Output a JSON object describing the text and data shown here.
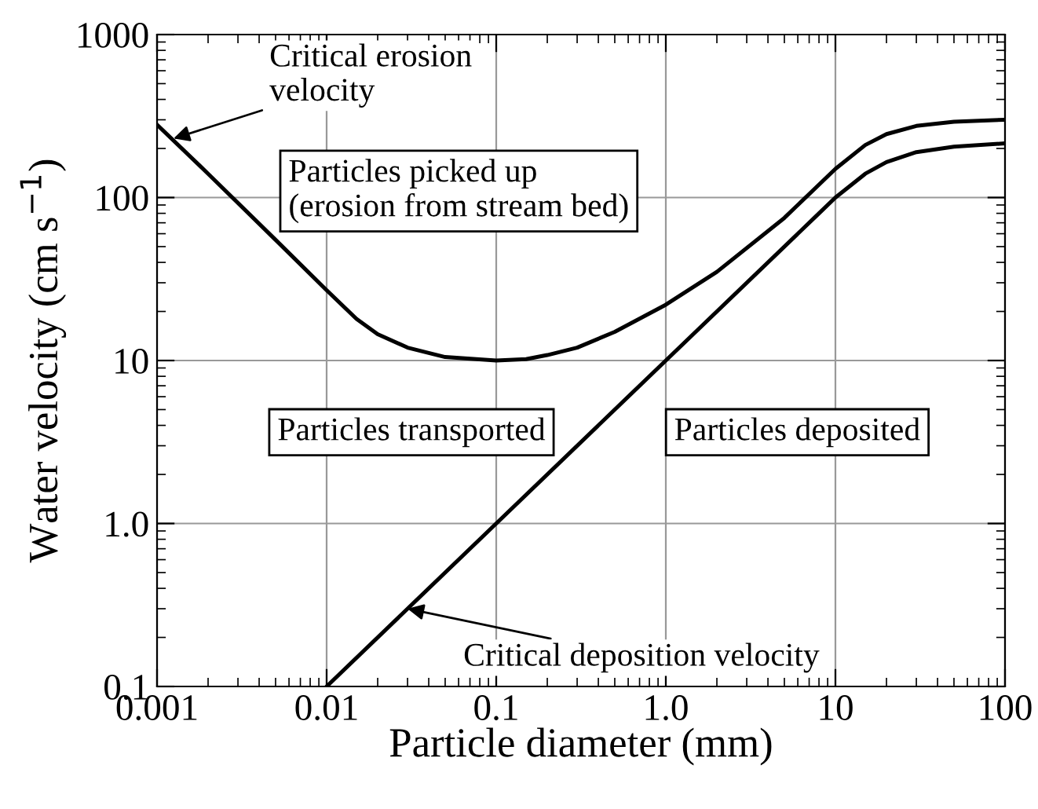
{
  "chart_data": {
    "type": "line",
    "xlabel": "Particle diameter (mm)",
    "ylabel": "Water velocity (cm s$^{−1}$)",
    "log": "xy",
    "xlim": [
      0.001,
      100
    ],
    "ylim": [
      0.1,
      1000
    ],
    "xticks": [
      {
        "value": 0.001,
        "label": "0.001"
      },
      {
        "value": 0.01,
        "label": "0.01"
      },
      {
        "value": 0.1,
        "label": "0.1"
      },
      {
        "value": 1,
        "label": "1.0"
      },
      {
        "value": 10,
        "label": "10"
      },
      {
        "value": 100,
        "label": "100"
      }
    ],
    "yticks": [
      {
        "value": 0.1,
        "label": "0.1"
      },
      {
        "value": 1,
        "label": "1.0"
      },
      {
        "value": 10,
        "label": "10"
      },
      {
        "value": 100,
        "label": "100"
      },
      {
        "value": 1000,
        "label": "1000"
      }
    ],
    "grid": true,
    "legend": false,
    "marker": "none",
    "line_style": "solid",
    "series": [
      {
        "color": "#000000",
        "x": [
          0.001,
          0.002,
          0.005,
          0.01,
          0.015,
          0.02,
          0.03,
          0.05,
          0.1,
          0.15,
          0.2,
          0.3,
          0.5,
          1,
          2,
          5,
          10,
          15,
          20,
          30,
          50,
          100
        ],
        "values": [
          280,
          140,
          55,
          27,
          18,
          14.5,
          12,
          10.5,
          10,
          10.2,
          10.8,
          12,
          15,
          22,
          35,
          75,
          150,
          210,
          245,
          275,
          292,
          300
        ]
      },
      {
        "color": "#000000",
        "x": [
          0.01,
          0.1,
          1,
          8,
          10,
          15,
          20,
          30,
          50,
          100
        ],
        "values": [
          0.1,
          1,
          10,
          80,
          100,
          140,
          165,
          190,
          205,
          215
        ]
      }
    ],
    "annotations": [
      {
        "text": "Critical erosion\nvelocity",
        "x": 0.00125,
        "y": 230
      },
      {
        "text": "Critical deposition velocity",
        "x": 0.03,
        "y": 0.3
      },
      "Particles picked up\n(erosion from stream bed)",
      "Particles transported",
      "Particles deposited"
    ]
  }
}
